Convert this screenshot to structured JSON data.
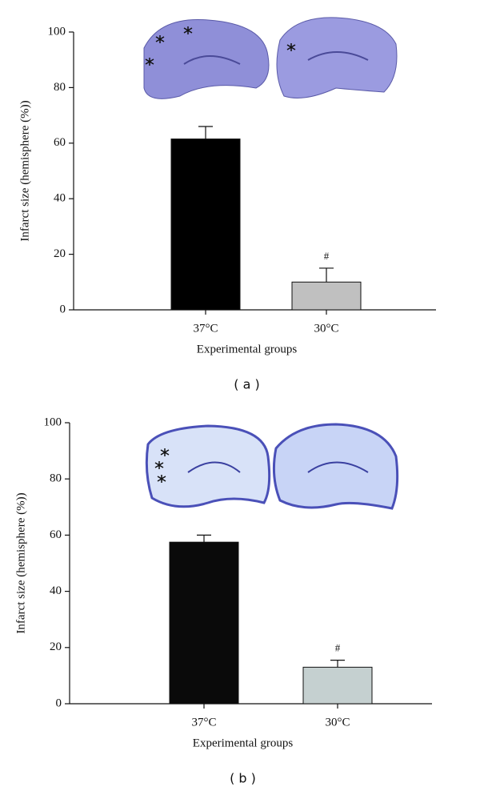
{
  "chart_data": [
    {
      "type": "bar",
      "panel_label": "( a )",
      "x_label": "Experimental groups",
      "y_label": "Infarct size (hemisphere (%))",
      "categories": [
        "37°C",
        "30°C"
      ],
      "values": [
        61.5,
        10
      ],
      "errors": [
        4.5,
        5
      ],
      "colors": [
        "#000000",
        "#c0c0c0"
      ],
      "value_annotations": [
        null,
        "#"
      ],
      "ylim": [
        0,
        100
      ],
      "yticks": [
        0,
        20,
        40,
        60,
        80,
        100
      ]
    },
    {
      "type": "bar",
      "panel_label": "( b )",
      "x_label": "Experimental groups",
      "y_label": "Infarct size (hemisphere (%))",
      "categories": [
        "37°C",
        "30°C"
      ],
      "values": [
        57.5,
        13
      ],
      "errors": [
        2.5,
        2.5
      ],
      "colors": [
        "#0a0a0a",
        "#c5d0d0"
      ],
      "value_annotations": [
        null,
        "#"
      ],
      "ylim": [
        0,
        100
      ],
      "yticks": [
        0,
        20,
        40,
        60,
        80,
        100
      ]
    }
  ]
}
